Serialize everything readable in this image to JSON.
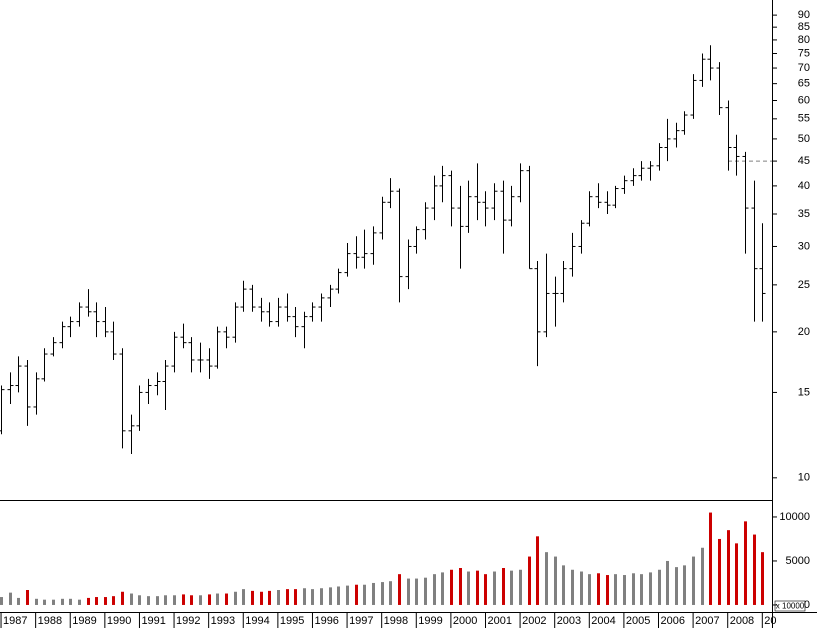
{
  "chart_data": {
    "type": "ohlc",
    "log_scale": true,
    "xlim": [
      1986.97,
      2009.28
    ],
    "xticks": [
      1987,
      1988,
      1989,
      1990,
      1991,
      1992,
      1993,
      1994,
      1995,
      1996,
      1997,
      1998,
      1999,
      2000,
      2001,
      2002,
      2003,
      2004,
      2005,
      2006,
      2007,
      2008,
      {
        "value": 2009,
        "label": "20"
      }
    ],
    "ylim": [
      9.0,
      96.7
    ],
    "yticks": [
      10,
      15,
      20,
      25,
      30,
      35,
      40,
      45,
      50,
      55,
      60,
      65,
      70,
      75,
      80,
      85,
      90
    ],
    "bar_color": "#000000",
    "reference_line": 45,
    "reference_color": "#808080",
    "x": [
      1987,
      1987.25,
      1987.5,
      1987.75,
      1988,
      1988.25,
      1988.5,
      1988.75,
      1989,
      1989.25,
      1989.5,
      1989.75,
      1990,
      1990.25,
      1990.5,
      1990.75,
      1991,
      1991.25,
      1991.5,
      1991.75,
      1992,
      1992.25,
      1992.5,
      1992.75,
      1993,
      1993.25,
      1993.5,
      1993.75,
      1994,
      1994.25,
      1994.5,
      1994.75,
      1995,
      1995.25,
      1995.5,
      1995.75,
      1996,
      1996.25,
      1996.5,
      1996.75,
      1997,
      1997.25,
      1997.5,
      1997.75,
      1998,
      1998.25,
      1998.5,
      1998.75,
      1999,
      1999.25,
      1999.5,
      1999.75,
      2000,
      2000.25,
      2000.5,
      2000.75,
      2001,
      2001.25,
      2001.5,
      2001.75,
      2002,
      2002.25,
      2002.5,
      2002.75,
      2003,
      2003.25,
      2003.5,
      2003.75,
      2004,
      2004.25,
      2004.5,
      2004.75,
      2005,
      2005.25,
      2005.5,
      2005.75,
      2006,
      2006.25,
      2006.5,
      2006.75,
      2007,
      2007.25,
      2007.5,
      2007.75,
      2008,
      2008.25,
      2008.5,
      2008.75,
      2009
    ],
    "open": [
      12.5,
      15.2,
      15.5,
      17,
      14,
      16,
      18,
      19,
      20.5,
      21,
      22.5,
      22,
      21,
      20,
      18,
      12.5,
      12.8,
      15,
      15.5,
      15.8,
      17,
      19.5,
      19,
      17.5,
      17.5,
      17,
      20,
      19.5,
      22.5,
      24.5,
      22.5,
      22,
      21,
      22.5,
      21.5,
      20.5,
      21.5,
      22.5,
      23.5,
      24.5,
      26.5,
      29,
      28.5,
      29,
      32,
      37,
      39,
      26,
      30,
      32.5,
      36,
      40,
      42,
      36,
      33,
      38,
      37,
      36,
      39,
      34,
      38,
      43,
      27,
      20,
      24,
      24,
      27,
      30,
      33.5,
      38,
      37,
      36.5,
      39.5,
      41,
      42,
      43.5,
      44,
      48,
      50,
      52,
      56,
      66,
      73,
      70,
      58,
      48,
      46,
      36,
      27
    ],
    "high": [
      15.5,
      16.5,
      17.8,
      17.5,
      16.5,
      18.5,
      19.5,
      21,
      21.5,
      23,
      24.5,
      23,
      22.5,
      21,
      18.5,
      13.5,
      15.5,
      16,
      16.5,
      17.5,
      20,
      20.8,
      19.5,
      19,
      18.5,
      20.5,
      20.5,
      23,
      25.5,
      25,
      23.5,
      23,
      23.5,
      24,
      22.5,
      22,
      23,
      24,
      25,
      27,
      30.5,
      31.5,
      32.5,
      33,
      38,
      41.5,
      39.5,
      31,
      33,
      37,
      42,
      44,
      43,
      40,
      41,
      44.5,
      39,
      40.5,
      41,
      40,
      44.5,
      44,
      28,
      29,
      26,
      28,
      32,
      34,
      39,
      40.5,
      39,
      40,
      42,
      43.5,
      45,
      45,
      49,
      55,
      54,
      57,
      68,
      75,
      78,
      72,
      60,
      51,
      47,
      41,
      33.5
    ],
    "low": [
      12.3,
      14.2,
      15,
      12.8,
      13.5,
      15.8,
      17.8,
      18.5,
      19.5,
      20.5,
      21.5,
      19.5,
      19.5,
      17.5,
      11.5,
      11.2,
      12.5,
      14.2,
      14.8,
      13.8,
      16.5,
      18.5,
      16.5,
      16.5,
      16,
      16.8,
      18.5,
      19,
      22,
      22,
      21,
      20.5,
      20.5,
      21,
      19.5,
      18.5,
      21,
      21,
      22.5,
      24,
      26,
      27,
      27,
      27.5,
      31,
      36,
      23,
      24.5,
      29,
      31,
      34,
      37,
      33,
      27,
      32,
      34,
      33,
      34,
      29,
      33,
      37,
      27,
      17,
      19.5,
      20.5,
      23,
      26,
      29,
      33,
      36,
      35,
      36,
      38.5,
      40,
      41,
      41,
      43,
      45,
      48,
      51,
      55,
      64,
      66,
      56,
      43,
      42,
      29,
      21,
      21
    ],
    "close": [
      15.2,
      15.5,
      17,
      14,
      16,
      18,
      19,
      20.5,
      21,
      22.5,
      22,
      21,
      20,
      18,
      12.5,
      12.8,
      15,
      15.5,
      15.8,
      17,
      19.5,
      19,
      17.5,
      17.5,
      17,
      20,
      19.5,
      22.5,
      24.5,
      22.5,
      22,
      21,
      22.5,
      21.5,
      20.5,
      21.5,
      22.5,
      23.5,
      24.5,
      26.5,
      29,
      28.5,
      29,
      32,
      37,
      39,
      26,
      30,
      32.5,
      36,
      40,
      42,
      36,
      33,
      38,
      37,
      36,
      39,
      34,
      38,
      43,
      27,
      20,
      24,
      24,
      27,
      30,
      33.5,
      38,
      37,
      36.5,
      39.5,
      41,
      42,
      43.5,
      44,
      48,
      50,
      52,
      56,
      66,
      73,
      70,
      58,
      48,
      46,
      36,
      27,
      24
    ],
    "volume": {
      "ylim": [
        -800,
        11700
      ],
      "yticks": [
        0,
        5000,
        10000
      ],
      "unit_label": "x 10000",
      "up_color": "#808080",
      "down_color": "#cc0000",
      "values": [
        900,
        1400,
        800,
        1700,
        700,
        600,
        600,
        700,
        700,
        600,
        800,
        900,
        900,
        1000,
        1500,
        1300,
        1100,
        1000,
        1000,
        1100,
        1100,
        1200,
        1100,
        1100,
        1200,
        1300,
        1300,
        1500,
        1800,
        1600,
        1500,
        1600,
        1700,
        1800,
        1800,
        1900,
        1800,
        1900,
        2000,
        2100,
        2200,
        2300,
        2300,
        2500,
        2600,
        2700,
        3500,
        3000,
        3000,
        3100,
        3500,
        3700,
        4000,
        4200,
        3800,
        3900,
        3500,
        3800,
        4200,
        3900,
        4000,
        5500,
        7800,
        6000,
        5500,
        4500,
        4000,
        3800,
        3500,
        3600,
        3400,
        3500,
        3400,
        3600,
        3500,
        3700,
        4000,
        5000,
        4300,
        4500,
        5500,
        6500,
        10500,
        7500,
        8500,
        7000,
        9500,
        8000,
        6000
      ]
    }
  }
}
